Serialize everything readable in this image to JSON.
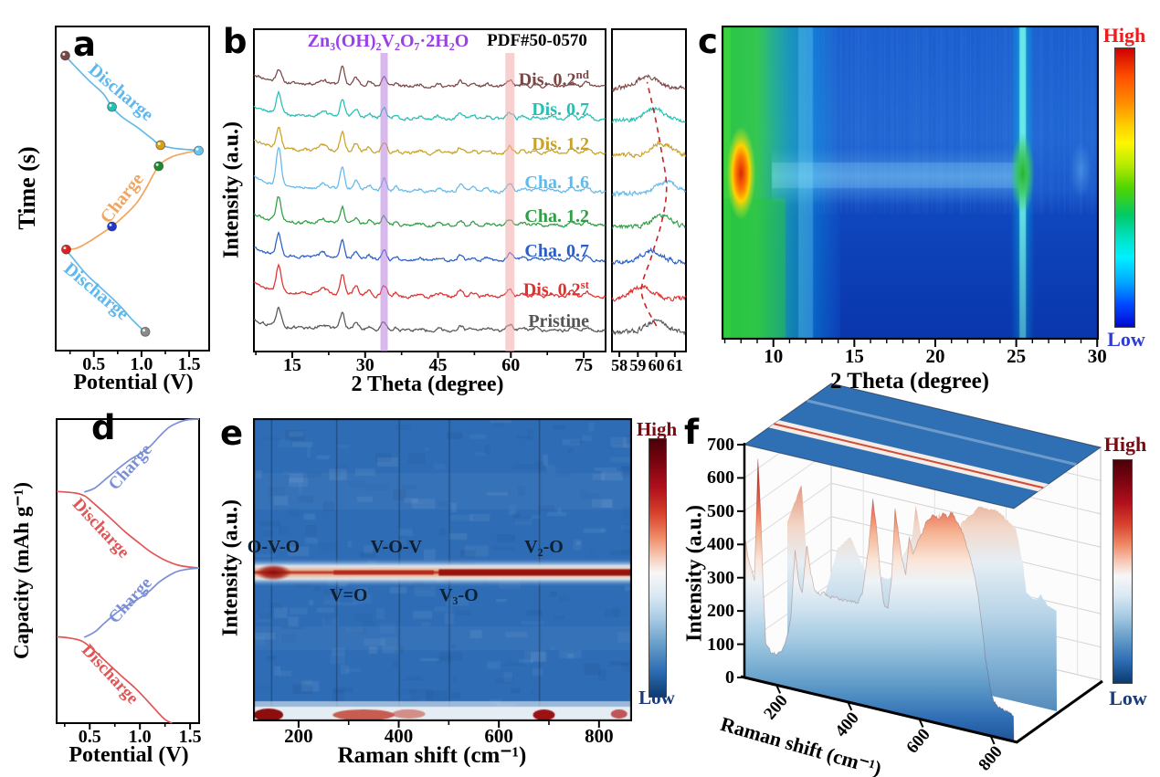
{
  "figure": {
    "background": "#ffffff",
    "panels": {
      "a": {
        "letter": "a"
      },
      "b": {
        "letter": "b"
      },
      "c": {
        "letter": "c"
      },
      "d": {
        "letter": "d"
      },
      "e": {
        "letter": "e"
      },
      "f": {
        "letter": "f"
      }
    }
  },
  "chart_data": [
    {
      "id": "a",
      "type": "line",
      "xlabel": "Potential (V)",
      "ylabel": "Time (s)",
      "xticks": [
        "0.5",
        "1.0",
        "1.5"
      ],
      "xrange": [
        0.1,
        1.71
      ],
      "series": [
        {
          "name": "discharge-2nd",
          "color": "#64b9e9",
          "points": [
            [
              0.2,
              0.91
            ],
            [
              0.3,
              0.878
            ],
            [
              0.45,
              0.833
            ],
            [
              0.6,
              0.792
            ],
            [
              0.69,
              0.752
            ],
            [
              0.8,
              0.72
            ],
            [
              0.95,
              0.69
            ],
            [
              1.1,
              0.656
            ],
            [
              1.2,
              0.634
            ],
            [
              1.35,
              0.624
            ],
            [
              1.5,
              0.62
            ],
            [
              1.6,
              0.617
            ]
          ]
        },
        {
          "name": "charge",
          "color": "#f2a55e",
          "points": [
            [
              0.21,
              0.312
            ],
            [
              0.32,
              0.316
            ],
            [
              0.45,
              0.336
            ],
            [
              0.58,
              0.361
            ],
            [
              0.69,
              0.383
            ],
            [
              0.82,
              0.416
            ],
            [
              0.95,
              0.456
            ],
            [
              1.05,
              0.502
            ],
            [
              1.18,
              0.569
            ],
            [
              1.32,
              0.598
            ],
            [
              1.5,
              0.612
            ],
            [
              1.6,
              0.617
            ]
          ]
        },
        {
          "name": "discharge-1st",
          "color": "#64b9e9",
          "points": [
            [
              0.21,
              0.31
            ],
            [
              0.3,
              0.278
            ],
            [
              0.42,
              0.236
            ],
            [
              0.55,
              0.2
            ],
            [
              0.68,
              0.165
            ],
            [
              0.8,
              0.13
            ],
            [
              0.9,
              0.096
            ],
            [
              1.0,
              0.068
            ],
            [
              1.04,
              0.058
            ]
          ]
        }
      ],
      "markers": [
        {
          "x": 0.2,
          "y": 0.91,
          "color": "#7b4646"
        },
        {
          "x": 0.69,
          "y": 0.752,
          "color": "#25bfb4"
        },
        {
          "x": 1.2,
          "y": 0.634,
          "color": "#d4a017"
        },
        {
          "x": 1.6,
          "y": 0.617,
          "color": "#66c6f2"
        },
        {
          "x": 1.18,
          "y": 0.569,
          "color": "#1f8a2f"
        },
        {
          "x": 0.69,
          "y": 0.383,
          "color": "#2438cc"
        },
        {
          "x": 0.21,
          "y": 0.312,
          "color": "#dd2222"
        },
        {
          "x": 1.04,
          "y": 0.058,
          "color": "#8a8a8a"
        }
      ],
      "labels": [
        {
          "text": "Discharge",
          "color": "#5fb8ed",
          "x": 0.78,
          "y": 0.795,
          "rot": 40
        },
        {
          "text": "Charge",
          "color": "#f0a562",
          "x": 0.8,
          "y": 0.468,
          "rot": -52
        },
        {
          "text": "Discharge",
          "color": "#5fb8ed",
          "x": 0.52,
          "y": 0.18,
          "rot": 40
        }
      ]
    },
    {
      "id": "b",
      "type": "line",
      "title": "Zn₃(OH)₂V₂O₇·2H₂O",
      "title_color": "#9b3fe8",
      "ref": "PDF#50-0570",
      "xlabel": "2 Theta (degree)",
      "ylabel": "Intensity (a.u.)",
      "xticks": [
        15,
        30,
        45,
        60,
        75
      ],
      "xrange": [
        7.1,
        79.5
      ],
      "bands": [
        {
          "x": 33.9,
          "width": 8,
          "color": "#b87fe0"
        },
        {
          "x": 59.8,
          "width": 10,
          "color": "#f2a9a9"
        }
      ],
      "peaks": [
        [
          12.2,
          0.5,
          26
        ],
        [
          21.3,
          0.8,
          5
        ],
        [
          25.3,
          0.45,
          22
        ],
        [
          28.1,
          0.5,
          9
        ],
        [
          30.8,
          0.5,
          5
        ],
        [
          33.9,
          0.5,
          12
        ],
        [
          36.4,
          0.5,
          4
        ],
        [
          41.2,
          0.6,
          3
        ],
        [
          45.2,
          0.6,
          3
        ],
        [
          49.6,
          0.55,
          7
        ],
        [
          52.2,
          0.6,
          4
        ],
        [
          55.2,
          0.6,
          3
        ],
        [
          59.8,
          0.6,
          8
        ],
        [
          62.5,
          0.6,
          3
        ],
        [
          65.2,
          0.6,
          3
        ],
        [
          68.5,
          0.7,
          3
        ],
        [
          72.6,
          0.6,
          6
        ],
        [
          75.6,
          0.6,
          5
        ]
      ],
      "series": [
        {
          "label": "Dis. 0.2",
          "sup": "nd",
          "color": "#7b4646",
          "base": 0.178,
          "amp": 0.85,
          "amp12": 0.55,
          "inset_center": 59.5
        },
        {
          "label": "Dis. 0.7",
          "sup": "",
          "color": "#27bfb4",
          "base": 0.278,
          "amp": 0.9,
          "amp12": 0.9,
          "inset_center": 59.9
        },
        {
          "label": "Dis. 1.2",
          "sup": "",
          "color": "#c9a227",
          "base": 0.385,
          "amp": 0.95,
          "amp12": 0.85,
          "inset_center": 60.25
        },
        {
          "label": "Cha. 1.6",
          "sup": "",
          "color": "#64b9e9",
          "base": 0.504,
          "amp": 1.1,
          "amp12": 1.6,
          "inset_center": 60.55
        },
        {
          "label": "Cha. 1.2",
          "sup": "",
          "color": "#2f9e44",
          "base": 0.609,
          "amp": 0.8,
          "amp12": 1.0,
          "inset_center": 60.3
        },
        {
          "label": "Cha. 0.7",
          "sup": "",
          "color": "#2b5fc7",
          "base": 0.717,
          "amp": 0.9,
          "amp12": 0.9,
          "inset_center": 59.75
        },
        {
          "label": "Dis. 0.2",
          "sup": "st",
          "color": "#e03131",
          "base": 0.83,
          "amp": 1.0,
          "amp12": 1.1,
          "inset_center": 59.2
        },
        {
          "label": "Pristine",
          "sup": "",
          "color": "#555555",
          "base": 0.935,
          "amp": 0.75,
          "amp12": 0.8,
          "inset_center": 60.0
        }
      ],
      "inset": {
        "xrange": [
          57.6,
          61.6
        ],
        "xticks": [
          58,
          59,
          60,
          61
        ],
        "dash_color": "#cc2222"
      }
    },
    {
      "id": "c",
      "type": "heatmap",
      "xlabel": "2 Theta (degree)",
      "xticks": [
        10,
        15,
        20,
        25,
        30
      ],
      "xrange": [
        6.8,
        30.1
      ],
      "colorbar": {
        "high": "High",
        "low": "Low",
        "high_color": "#ee1c1c",
        "low_color": "#2e3bd8"
      },
      "features": {
        "left_green_region": [
          6.8,
          10.5
        ],
        "hotspot": {
          "x": 8.0,
          "yfrac": 0.47
        },
        "faint_column": 12.0,
        "bright_column": {
          "x": 25.4,
          "yfrac": 0.47
        },
        "right_blob": {
          "x": 29.0,
          "yfrac": 0.46
        },
        "mid_band_yfrac": [
          0.4,
          0.55
        ]
      }
    },
    {
      "id": "d",
      "type": "line",
      "xlabel": "Potential (V)",
      "ylabel": "Capacity (mAh g⁻¹)",
      "xticks": [
        "0.5",
        "1.0",
        "1.5"
      ],
      "xrange": [
        0.17,
        1.59
      ],
      "series": [
        {
          "name": "charge-2",
          "color": "#7b8fd6",
          "points": [
            [
              0.445,
              0.76
            ],
            [
              0.55,
              0.773
            ],
            [
              0.65,
              0.8
            ],
            [
              0.78,
              0.836
            ],
            [
              0.9,
              0.866
            ],
            [
              1.0,
              0.886
            ],
            [
              1.1,
              0.91
            ],
            [
              1.2,
              0.945
            ],
            [
              1.3,
              0.975
            ],
            [
              1.45,
              0.996
            ],
            [
              1.59,
              1.0
            ]
          ]
        },
        {
          "name": "discharge-2",
          "color": "#e05656",
          "points": [
            [
              0.17,
              0.762
            ],
            [
              0.35,
              0.757
            ],
            [
              0.45,
              0.747
            ],
            [
              0.55,
              0.72
            ],
            [
              0.7,
              0.676
            ],
            [
              0.85,
              0.63
            ],
            [
              1.0,
              0.59
            ],
            [
              1.1,
              0.565
            ],
            [
              1.25,
              0.536
            ],
            [
              1.4,
              0.518
            ],
            [
              1.59,
              0.51
            ]
          ]
        },
        {
          "name": "charge-1",
          "color": "#7b8fd6",
          "points": [
            [
              0.445,
              0.282
            ],
            [
              0.55,
              0.3
            ],
            [
              0.65,
              0.33
            ],
            [
              0.78,
              0.366
            ],
            [
              0.9,
              0.392
            ],
            [
              1.0,
              0.412
            ],
            [
              1.1,
              0.436
            ],
            [
              1.2,
              0.466
            ],
            [
              1.35,
              0.496
            ],
            [
              1.47,
              0.506
            ],
            [
              1.59,
              0.51
            ]
          ]
        },
        {
          "name": "discharge-1",
          "color": "#e05656",
          "points": [
            [
              0.17,
              0.284
            ],
            [
              0.3,
              0.28
            ],
            [
              0.42,
              0.27
            ],
            [
              0.52,
              0.246
            ],
            [
              0.65,
              0.206
            ],
            [
              0.8,
              0.16
            ],
            [
              0.95,
              0.116
            ],
            [
              1.05,
              0.082
            ],
            [
              1.15,
              0.046
            ],
            [
              1.25,
              0.012
            ],
            [
              1.32,
              0.0
            ]
          ]
        }
      ],
      "labels": [
        {
          "text": "Charge",
          "color": "#7b8fd6",
          "x": 0.91,
          "y": 0.838,
          "rot": -48
        },
        {
          "text": "Discharge",
          "color": "#e05656",
          "x": 0.61,
          "y": 0.637,
          "rot": 47
        },
        {
          "text": "Charge",
          "color": "#7b8fd6",
          "x": 0.91,
          "y": 0.4,
          "rot": -48
        },
        {
          "text": "Discharge",
          "color": "#e05656",
          "x": 0.7,
          "y": 0.156,
          "rot": 47
        }
      ]
    },
    {
      "id": "e",
      "type": "heatmap",
      "xlabel": "Raman shift (cm⁻¹)",
      "ylabel": "Intensity (a.u.)",
      "xticks": [
        200,
        400,
        600,
        800
      ],
      "xrange": [
        109,
        866
      ],
      "band_yfrac": 0.509,
      "gridlines": [
        145,
        275,
        400,
        500,
        680
      ],
      "annotations": [
        {
          "text": "O-V-O",
          "x": 150,
          "row": "above"
        },
        {
          "text": "V=O",
          "x": 300,
          "row": "below"
        },
        {
          "text": "V-O-V",
          "x": 395,
          "row": "above"
        },
        {
          "text": "V₃-O",
          "x": 520,
          "row": "below"
        },
        {
          "text": "V₂-O",
          "x": 690,
          "row": "above"
        }
      ],
      "colorbar": {
        "high": "High",
        "low": "Low",
        "high_color": "#7a0a12",
        "low_color": "#1a3a7a"
      }
    },
    {
      "id": "f",
      "type": "surface3d",
      "xlabel": "Raman shift (cm⁻¹)",
      "ylabel": "Intensity (a.u.)",
      "xticks": [
        200,
        400,
        600,
        800
      ],
      "yticks": [
        0,
        100,
        200,
        300,
        400,
        500,
        600,
        700
      ],
      "xrange": [
        110,
        865
      ],
      "yrange": [
        0,
        700
      ],
      "front_profile": [
        [
          110,
          430
        ],
        [
          125,
          340
        ],
        [
          138,
          300
        ],
        [
          148,
          668
        ],
        [
          155,
          520
        ],
        [
          162,
          300
        ],
        [
          170,
          120
        ],
        [
          185,
          90
        ],
        [
          205,
          95
        ],
        [
          225,
          130
        ],
        [
          240,
          210
        ],
        [
          252,
          420
        ],
        [
          262,
          330
        ],
        [
          272,
          300
        ],
        [
          285,
          445
        ],
        [
          295,
          360
        ],
        [
          308,
          310
        ],
        [
          320,
          305
        ],
        [
          335,
          315
        ],
        [
          350,
          300
        ],
        [
          365,
          310
        ],
        [
          380,
          300
        ],
        [
          395,
          310
        ],
        [
          410,
          300
        ],
        [
          425,
          305
        ],
        [
          440,
          335
        ],
        [
          458,
          480
        ],
        [
          470,
          635
        ],
        [
          480,
          550
        ],
        [
          490,
          420
        ],
        [
          500,
          320
        ],
        [
          512,
          310
        ],
        [
          522,
          400
        ],
        [
          532,
          615
        ],
        [
          542,
          540
        ],
        [
          552,
          470
        ],
        [
          562,
          430
        ],
        [
          572,
          545
        ],
        [
          582,
          490
        ],
        [
          592,
          520
        ],
        [
          605,
          560
        ],
        [
          618,
          592
        ],
        [
          630,
          610
        ],
        [
          642,
          625
        ],
        [
          655,
          615
        ],
        [
          668,
          635
        ],
        [
          680,
          622
        ],
        [
          692,
          645
        ],
        [
          705,
          625
        ],
        [
          718,
          600
        ],
        [
          730,
          565
        ],
        [
          742,
          520
        ],
        [
          754,
          470
        ],
        [
          764,
          420
        ],
        [
          774,
          340
        ],
        [
          784,
          240
        ],
        [
          794,
          170
        ],
        [
          804,
          120
        ],
        [
          815,
          100
        ],
        [
          830,
          90
        ],
        [
          850,
          85
        ],
        [
          865,
          80
        ]
      ],
      "back_profile": [
        [
          110,
          380
        ],
        [
          150,
          500
        ],
        [
          170,
          200
        ],
        [
          200,
          120
        ],
        [
          250,
          330
        ],
        [
          285,
          380
        ],
        [
          330,
          280
        ],
        [
          400,
          280
        ],
        [
          460,
          420
        ],
        [
          470,
          520
        ],
        [
          510,
          300
        ],
        [
          535,
          520
        ],
        [
          560,
          420
        ],
        [
          600,
          500
        ],
        [
          650,
          560
        ],
        [
          700,
          560
        ],
        [
          750,
          520
        ],
        [
          770,
          420
        ],
        [
          780,
          330
        ],
        [
          800,
          320
        ],
        [
          820,
          335
        ],
        [
          840,
          310
        ],
        [
          865,
          300
        ]
      ],
      "colorbar": {
        "high": "High",
        "low": "Low",
        "high_color": "#7a0a12",
        "low_color": "#1a3a7a"
      }
    }
  ]
}
